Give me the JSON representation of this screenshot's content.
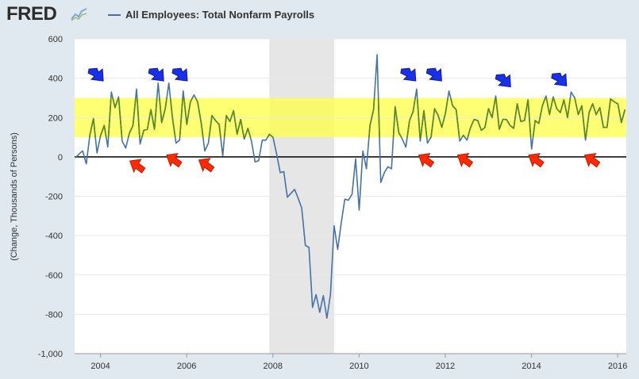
{
  "header": {
    "logo_text": "FRED",
    "logo_icon": "chart-line-icon",
    "series_title": "All Employees: Total Nonfarm Payrolls"
  },
  "chart_data": {
    "type": "line",
    "title": "All Employees: Total Nonfarm Payrolls",
    "ylabel": "(Change, Thousands of Persons)",
    "xlabel": "",
    "xlim": [
      2003.4,
      2016.2
    ],
    "ylim": [
      -1000,
      600
    ],
    "x_ticks": [
      2004,
      2006,
      2008,
      2010,
      2012,
      2014,
      2016
    ],
    "x_tick_labels": [
      "2004",
      "2006",
      "2008",
      "2010",
      "2012",
      "2014",
      "2016"
    ],
    "y_ticks": [
      -1000,
      -800,
      -600,
      -400,
      -200,
      0,
      200,
      400,
      600
    ],
    "y_tick_labels": [
      "-1,000",
      "-800",
      "-600",
      "-400",
      "-200",
      "0",
      "200",
      "400",
      "600"
    ],
    "recession": {
      "start": 2007.92,
      "end": 2009.42,
      "color": "#e6e6e6"
    },
    "highlight_band": {
      "ymin": 100,
      "ymax": 300,
      "color": "#ffff44"
    },
    "zero_line": 0,
    "series": [
      {
        "name": "All Employees: Total Nonfarm Payrolls",
        "color": "#4572a7",
        "highlight_color": "#5a8a1e",
        "start": 2003.42,
        "step": 0.08333,
        "values": [
          -5,
          15,
          30,
          -35,
          110,
          195,
          20,
          110,
          160,
          50,
          330,
          250,
          305,
          80,
          45,
          120,
          160,
          345,
          65,
          135,
          140,
          240,
          140,
          375,
          175,
          245,
          375,
          200,
          70,
          85,
          335,
          165,
          280,
          315,
          280,
          175,
          30,
          70,
          210,
          185,
          165,
          5,
          210,
          180,
          235,
          115,
          190,
          90,
          145,
          80,
          -25,
          -20,
          85,
          85,
          115,
          100,
          15,
          -80,
          -75,
          -205,
          -185,
          -165,
          -210,
          -260,
          -450,
          -460,
          -765,
          -700,
          -790,
          -705,
          -820,
          -700,
          -350,
          -470,
          -335,
          -215,
          -220,
          -190,
          -10,
          -270,
          30,
          -60,
          160,
          240,
          520,
          -130,
          -80,
          -50,
          -60,
          255,
          125,
          90,
          50,
          185,
          230,
          345,
          80,
          235,
          70,
          100,
          245,
          210,
          150,
          220,
          335,
          260,
          240,
          80,
          110,
          85,
          150,
          190,
          185,
          135,
          150,
          245,
          200,
          310,
          140,
          190,
          190,
          160,
          145,
          270,
          180,
          185,
          290,
          40,
          185,
          170,
          260,
          310,
          215,
          305,
          245,
          225,
          290,
          200,
          330,
          300,
          215,
          260,
          85,
          225,
          270,
          215,
          250,
          150,
          150,
          295,
          280,
          270,
          175,
          240
        ]
      }
    ],
    "annotations": [
      {
        "type": "arrow-down",
        "color": "blue",
        "x": 2003.9,
        "y": 410
      },
      {
        "type": "arrow-down",
        "color": "blue",
        "x": 2005.3,
        "y": 410
      },
      {
        "type": "arrow-down",
        "color": "blue",
        "x": 2005.85,
        "y": 410
      },
      {
        "type": "arrow-down",
        "color": "blue",
        "x": 2011.15,
        "y": 410
      },
      {
        "type": "arrow-down",
        "color": "blue",
        "x": 2011.75,
        "y": 410
      },
      {
        "type": "arrow-down",
        "color": "blue",
        "x": 2013.35,
        "y": 380
      },
      {
        "type": "arrow-down",
        "color": "blue",
        "x": 2014.65,
        "y": 385
      },
      {
        "type": "arrow-up",
        "color": "red",
        "x": 2004.85,
        "y": -45
      },
      {
        "type": "arrow-up",
        "color": "red",
        "x": 2005.7,
        "y": -15
      },
      {
        "type": "arrow-up",
        "color": "red",
        "x": 2006.45,
        "y": -40
      },
      {
        "type": "arrow-up",
        "color": "red",
        "x": 2011.55,
        "y": -15
      },
      {
        "type": "arrow-up",
        "color": "red",
        "x": 2012.45,
        "y": -15
      },
      {
        "type": "arrow-up",
        "color": "red",
        "x": 2014.1,
        "y": -15
      },
      {
        "type": "arrow-up",
        "color": "red",
        "x": 2015.4,
        "y": -15
      }
    ]
  }
}
